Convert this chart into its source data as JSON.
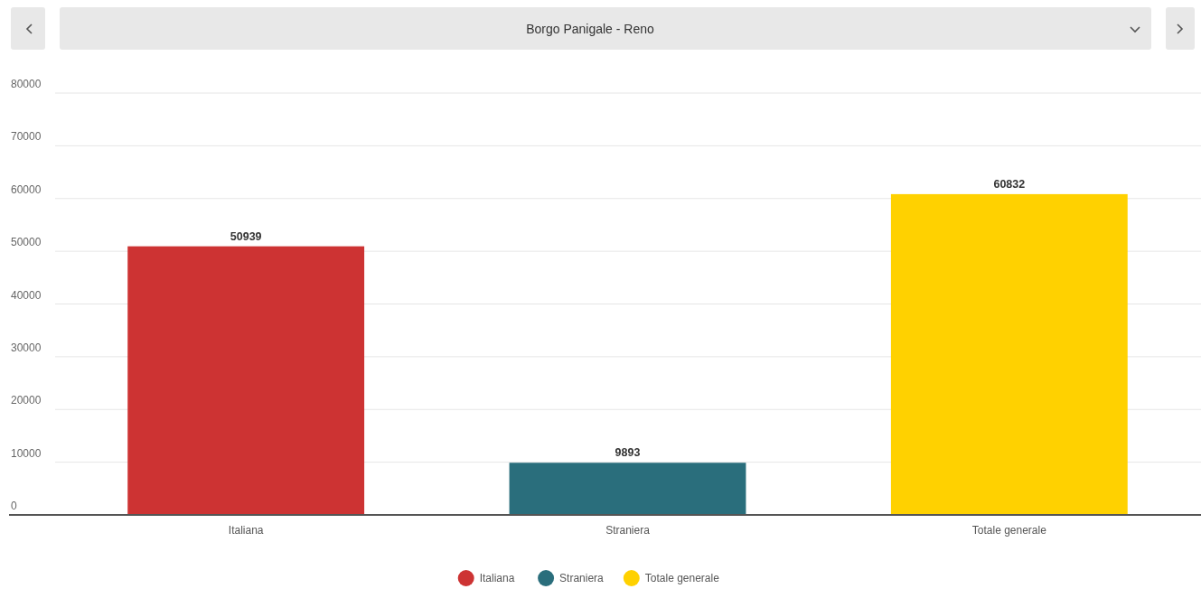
{
  "chart_data": {
    "type": "bar",
    "title": "Borgo Panigale - Reno",
    "categories": [
      "Italiana",
      "Straniera",
      "Totale generale"
    ],
    "series": [
      {
        "name": "Italiana",
        "color": "#cd3333",
        "values": [
          50939,
          null,
          null
        ]
      },
      {
        "name": "Straniera",
        "color": "#2a6e7c",
        "values": [
          null,
          9893,
          null
        ]
      },
      {
        "name": "Totale generale",
        "color": "#ffd100",
        "values": [
          null,
          null,
          60832
        ]
      }
    ],
    "ylim": [
      0,
      80000
    ],
    "yticks": [
      0,
      10000,
      20000,
      30000,
      40000,
      50000,
      60000,
      70000,
      80000
    ],
    "grid": "y",
    "legend": "bottom",
    "data_labels": true
  }
}
